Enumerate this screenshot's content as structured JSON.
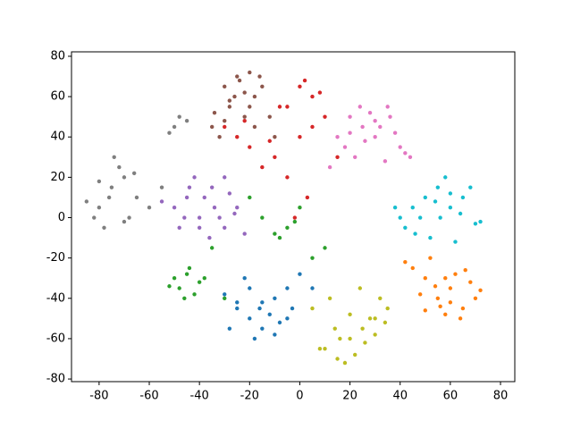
{
  "chart_data": {
    "type": "scatter",
    "xlim": [
      -91,
      85.7
    ],
    "ylim": [
      -81.3,
      82.2
    ],
    "xticks": [
      -80,
      -60,
      -40,
      -20,
      0,
      20,
      40,
      60,
      80
    ],
    "yticks": [
      -80,
      -60,
      -40,
      -20,
      0,
      20,
      40,
      60,
      80
    ],
    "grid": false,
    "series": [
      {
        "color": "#1f77b4",
        "x": [
          -25,
          -20,
          -15,
          -10,
          -5,
          -30,
          -18,
          -12,
          -8,
          -22,
          -28,
          -3,
          0,
          -15,
          -20,
          -10,
          -25,
          -5,
          5,
          -16
        ],
        "y": [
          -45,
          -50,
          -55,
          -40,
          -35,
          -38,
          -60,
          -48,
          -52,
          -30,
          -55,
          -45,
          -28,
          -42,
          -35,
          -58,
          -42,
          -50,
          -35,
          -45
        ]
      },
      {
        "color": "#ff7f0e",
        "x": [
          45,
          50,
          55,
          60,
          65,
          70,
          52,
          58,
          62,
          68,
          48,
          56,
          64,
          72,
          42,
          60,
          54,
          66,
          50,
          58
        ],
        "y": [
          -25,
          -30,
          -40,
          -35,
          -45,
          -40,
          -20,
          -48,
          -28,
          -32,
          -38,
          -44,
          -50,
          -36,
          -22,
          -42,
          -34,
          -26,
          -46,
          -30
        ]
      },
      {
        "color": "#2ca02c",
        "x": [
          -50,
          -48,
          -45,
          -42,
          -40,
          -46,
          -52,
          -38,
          -44,
          -5,
          -8,
          -2,
          -10,
          0,
          -35,
          -30,
          5,
          -20,
          -15,
          10
        ],
        "y": [
          -30,
          -35,
          -28,
          -38,
          -32,
          -40,
          -34,
          -30,
          -25,
          -5,
          -10,
          -2,
          -8,
          5,
          -15,
          -40,
          -20,
          10,
          0,
          -15
        ]
      },
      {
        "color": "#d62728",
        "x": [
          0,
          5,
          -5,
          2,
          8,
          -25,
          -30,
          -20,
          -10,
          -5,
          0,
          5,
          -15,
          10,
          3,
          -8,
          -22,
          -12,
          15,
          -2
        ],
        "y": [
          65,
          60,
          55,
          68,
          62,
          40,
          45,
          35,
          30,
          20,
          40,
          45,
          25,
          50,
          10,
          55,
          48,
          38,
          30,
          0
        ]
      },
      {
        "color": "#9467bd",
        "x": [
          -50,
          -45,
          -40,
          -35,
          -30,
          -25,
          -48,
          -42,
          -38,
          -32,
          -28,
          -22,
          -55,
          -36,
          -44,
          -30,
          -40,
          -26,
          -34,
          -46
        ],
        "y": [
          5,
          10,
          0,
          15,
          -5,
          5,
          -5,
          20,
          10,
          0,
          12,
          -8,
          8,
          -10,
          15,
          20,
          -5,
          2,
          5,
          0
        ]
      },
      {
        "color": "#8c564b",
        "x": [
          -30,
          -25,
          -20,
          -18,
          -28,
          -22,
          -35,
          -15,
          -32,
          -26,
          -20,
          -12,
          -24,
          -30,
          -18,
          -22,
          -28,
          -10,
          -34,
          -16
        ],
        "y": [
          65,
          70,
          72,
          60,
          55,
          50,
          45,
          65,
          40,
          60,
          55,
          50,
          68,
          48,
          45,
          62,
          58,
          40,
          52,
          70
        ]
      },
      {
        "color": "#e377c2",
        "x": [
          20,
          25,
          30,
          35,
          40,
          15,
          22,
          28,
          32,
          38,
          42,
          18,
          26,
          34,
          12,
          30,
          24,
          36,
          44,
          20
        ],
        "y": [
          50,
          45,
          40,
          55,
          35,
          40,
          30,
          52,
          45,
          42,
          32,
          35,
          38,
          28,
          25,
          48,
          55,
          50,
          30,
          42
        ]
      },
      {
        "color": "#7f7f7f",
        "x": [
          -85,
          -80,
          -75,
          -70,
          -65,
          -82,
          -78,
          -72,
          -68,
          -76,
          -60,
          -74,
          -70,
          -80,
          -55,
          -50,
          -48,
          -45,
          -52,
          -66
        ],
        "y": [
          8,
          5,
          15,
          20,
          10,
          0,
          -5,
          25,
          0,
          10,
          5,
          30,
          -2,
          18,
          15,
          45,
          50,
          48,
          42,
          22
        ]
      },
      {
        "color": "#bcbd22",
        "x": [
          10,
          15,
          20,
          25,
          30,
          35,
          12,
          18,
          22,
          28,
          32,
          5,
          8,
          14,
          24,
          16,
          20,
          26,
          30,
          34
        ],
        "y": [
          -65,
          -70,
          -60,
          -55,
          -50,
          -45,
          -40,
          -72,
          -68,
          -50,
          -40,
          -45,
          -65,
          -55,
          -35,
          -60,
          -48,
          -62,
          -58,
          -52
        ]
      },
      {
        "color": "#17becf",
        "x": [
          40,
          45,
          50,
          55,
          60,
          65,
          70,
          42,
          48,
          52,
          58,
          62,
          68,
          72,
          38,
          56,
          46,
          64,
          54,
          60
        ],
        "y": [
          0,
          5,
          10,
          15,
          5,
          10,
          -3,
          -5,
          0,
          -10,
          20,
          -12,
          15,
          -2,
          5,
          0,
          -8,
          2,
          8,
          12
        ]
      }
    ]
  }
}
